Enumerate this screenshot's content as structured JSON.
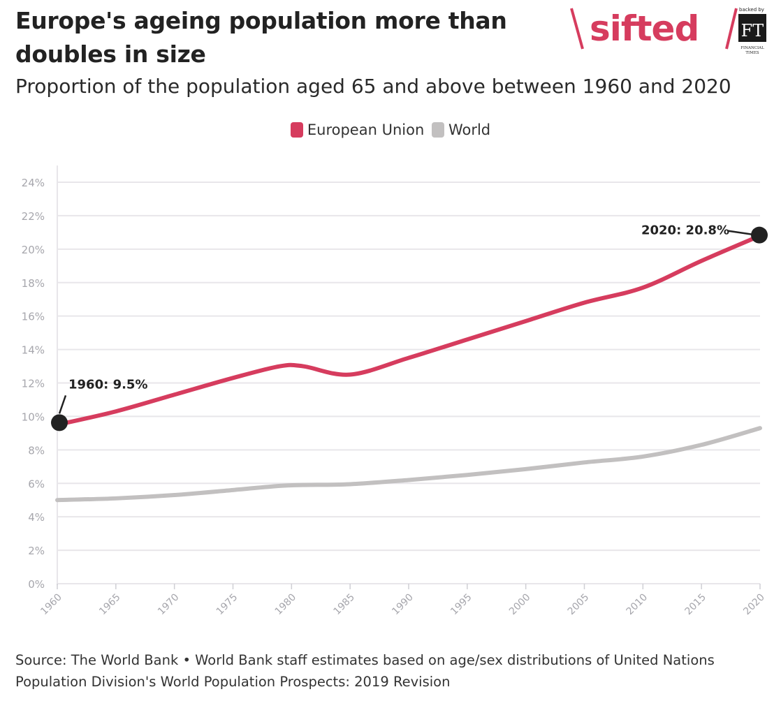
{
  "header": {
    "title": "Europe's ageing population more than doubles in size",
    "subtitle": "Proportion of the population aged 65 and above between 1960 and 2020"
  },
  "logo": {
    "brand": "sifted",
    "backed_by": "backed by",
    "ft_mark": "FT",
    "ft_name_line1": "FINANCIAL",
    "ft_name_line2": "TIMES",
    "brand_color": "#d63c5e"
  },
  "legend": {
    "eu_label": "European Union",
    "world_label": "World",
    "eu_color": "#d63c5e",
    "world_color": "#c2c0c0"
  },
  "annotations": {
    "start_label": "1960: 9.5%",
    "end_label": "2020: 20.8%"
  },
  "source": {
    "text": "Source: The World Bank • World Bank staff estimates based on age/sex distributions of United Nations Population Division's World Population Prospects: 2019 Revision"
  },
  "chart_data": {
    "type": "line",
    "title": "Europe's ageing population more than doubles in size",
    "subtitle": "Proportion of the population aged 65 and above between 1960 and 2020",
    "xlabel": "",
    "ylabel": "",
    "x": [
      1960,
      1965,
      1970,
      1975,
      1979,
      1981,
      1985,
      1990,
      1995,
      2000,
      2005,
      2010,
      2015,
      2020
    ],
    "ylim": [
      0,
      24
    ],
    "xlim": [
      1960,
      2020
    ],
    "y_ticks": [
      "0%",
      "2%",
      "4%",
      "6%",
      "8%",
      "10%",
      "12%",
      "14%",
      "16%",
      "18%",
      "20%",
      "22%",
      "24%"
    ],
    "x_ticks": [
      "1960",
      "1965",
      "1970",
      "1975",
      "1980",
      "1985",
      "1990",
      "1995",
      "2000",
      "2005",
      "2010",
      "2015",
      "2020"
    ],
    "grid": true,
    "legend_position": "top-center",
    "series": [
      {
        "name": "European Union",
        "color": "#d63c5e",
        "values": [
          9.5,
          10.3,
          11.3,
          12.3,
          13.0,
          13.0,
          12.5,
          13.5,
          14.6,
          15.7,
          16.8,
          17.7,
          19.3,
          20.8
        ]
      },
      {
        "name": "World",
        "color": "#c2c0c0",
        "values": [
          5.0,
          5.1,
          5.3,
          5.6,
          5.85,
          5.9,
          5.95,
          6.2,
          6.5,
          6.85,
          7.25,
          7.6,
          8.3,
          9.3
        ]
      }
    ]
  }
}
